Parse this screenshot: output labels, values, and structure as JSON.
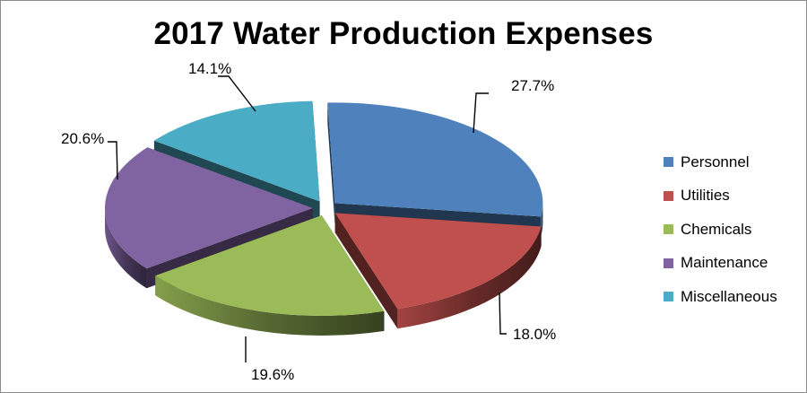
{
  "chart_data": {
    "type": "pie",
    "title": "2017 Water Production Expenses",
    "legend_position": "right",
    "exploded": true,
    "three_d": true,
    "slices": [
      {
        "name": "Personnel",
        "value": 27.7,
        "label": "27.7%",
        "color": "#4F81BD"
      },
      {
        "name": "Utilities",
        "value": 18.0,
        "label": "18.0%",
        "color": "#C0504D"
      },
      {
        "name": "Chemicals",
        "value": 19.6,
        "label": "19.6%",
        "color": "#9BBB59"
      },
      {
        "name": "Maintenance",
        "value": 20.6,
        "label": "20.6%",
        "color": "#8064A2"
      },
      {
        "name": "Miscellaneous",
        "value": 14.1,
        "label": "14.1%",
        "color": "#4BACC6"
      }
    ]
  }
}
